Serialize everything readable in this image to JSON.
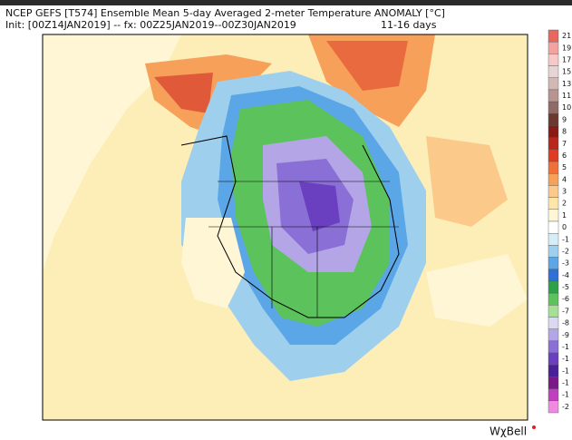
{
  "header": {
    "title": "NCEP GEFS [T574] Ensemble Mean 5-day Averaged 2-meter Temperature ANOMALY [°C]",
    "init": "Init: [00Z14JAN2019] -- fx: 00Z25JAN2019--00Z30JAN2019",
    "lead": "11-16 days"
  },
  "colorbar": [
    {
      "label": "21",
      "color": "#e8685f"
    },
    {
      "label": "19",
      "color": "#f2a3a0"
    },
    {
      "label": "17",
      "color": "#f6c9c6"
    },
    {
      "label": "15",
      "color": "#e7d5d5"
    },
    {
      "label": "13",
      "color": "#d2b7b5"
    },
    {
      "label": "11",
      "color": "#b99390"
    },
    {
      "label": "10",
      "color": "#8f6a66"
    },
    {
      "label": "9",
      "color": "#6a3a30"
    },
    {
      "label": "8",
      "color": "#8a1a14"
    },
    {
      "label": "7",
      "color": "#b8261c"
    },
    {
      "label": "6",
      "color": "#e03c24"
    },
    {
      "label": "5",
      "color": "#f0703a"
    },
    {
      "label": "4",
      "color": "#f7a05a"
    },
    {
      "label": "3",
      "color": "#fbc98a"
    },
    {
      "label": "2",
      "color": "#fde6aa"
    },
    {
      "label": "1",
      "color": "#fef6d4"
    },
    {
      "label": "0",
      "color": "#ffffff"
    },
    {
      "label": "-1",
      "color": "#d6ecf6"
    },
    {
      "label": "-2",
      "color": "#9ed0ee"
    },
    {
      "label": "-3",
      "color": "#5aa6e6"
    },
    {
      "label": "-4",
      "color": "#2f6fd6"
    },
    {
      "label": "-5",
      "color": "#2da04a"
    },
    {
      "label": "-6",
      "color": "#5cc25c"
    },
    {
      "label": "-7",
      "color": "#a6df96"
    },
    {
      "label": "-8",
      "color": "#dcd8f2"
    },
    {
      "label": "-9",
      "color": "#b4a6e6"
    },
    {
      "label": "-1",
      "color": "#8a6fd6"
    },
    {
      "label": "-1",
      "color": "#6a3fc0"
    },
    {
      "label": "-1",
      "color": "#4a1f9a"
    },
    {
      "label": "-1",
      "color": "#7a1a8a"
    },
    {
      "label": "-1",
      "color": "#c040c0"
    },
    {
      "label": "-2",
      "color": "#f08ae0"
    }
  ],
  "logo": "WχBell"
}
